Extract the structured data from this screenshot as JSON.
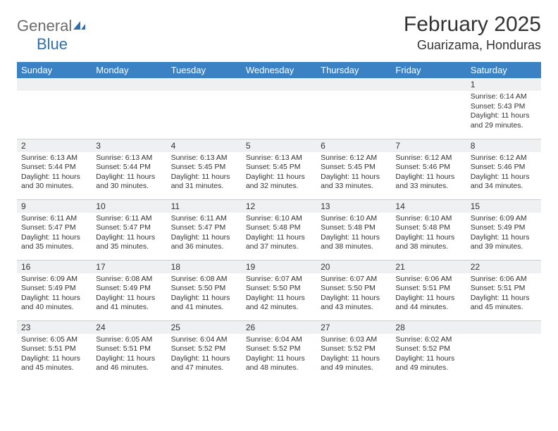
{
  "logo": {
    "word1": "General",
    "word2": "Blue"
  },
  "title": "February 2025",
  "location": "Guarizama, Honduras",
  "colors": {
    "headerBg": "#3b82c4",
    "headerText": "#ffffff",
    "dayNumBg": "#eef0f1",
    "border": "#cfcfcf",
    "logoGray": "#6b6b6b",
    "logoBlue": "#2f6fb0"
  },
  "dayHeaders": [
    "Sunday",
    "Monday",
    "Tuesday",
    "Wednesday",
    "Thursday",
    "Friday",
    "Saturday"
  ],
  "weeks": [
    [
      null,
      null,
      null,
      null,
      null,
      null,
      {
        "n": "1",
        "sr": "Sunrise: 6:14 AM",
        "ss": "Sunset: 5:43 PM",
        "dl": "Daylight: 11 hours and 29 minutes."
      }
    ],
    [
      {
        "n": "2",
        "sr": "Sunrise: 6:13 AM",
        "ss": "Sunset: 5:44 PM",
        "dl": "Daylight: 11 hours and 30 minutes."
      },
      {
        "n": "3",
        "sr": "Sunrise: 6:13 AM",
        "ss": "Sunset: 5:44 PM",
        "dl": "Daylight: 11 hours and 30 minutes."
      },
      {
        "n": "4",
        "sr": "Sunrise: 6:13 AM",
        "ss": "Sunset: 5:45 PM",
        "dl": "Daylight: 11 hours and 31 minutes."
      },
      {
        "n": "5",
        "sr": "Sunrise: 6:13 AM",
        "ss": "Sunset: 5:45 PM",
        "dl": "Daylight: 11 hours and 32 minutes."
      },
      {
        "n": "6",
        "sr": "Sunrise: 6:12 AM",
        "ss": "Sunset: 5:45 PM",
        "dl": "Daylight: 11 hours and 33 minutes."
      },
      {
        "n": "7",
        "sr": "Sunrise: 6:12 AM",
        "ss": "Sunset: 5:46 PM",
        "dl": "Daylight: 11 hours and 33 minutes."
      },
      {
        "n": "8",
        "sr": "Sunrise: 6:12 AM",
        "ss": "Sunset: 5:46 PM",
        "dl": "Daylight: 11 hours and 34 minutes."
      }
    ],
    [
      {
        "n": "9",
        "sr": "Sunrise: 6:11 AM",
        "ss": "Sunset: 5:47 PM",
        "dl": "Daylight: 11 hours and 35 minutes."
      },
      {
        "n": "10",
        "sr": "Sunrise: 6:11 AM",
        "ss": "Sunset: 5:47 PM",
        "dl": "Daylight: 11 hours and 35 minutes."
      },
      {
        "n": "11",
        "sr": "Sunrise: 6:11 AM",
        "ss": "Sunset: 5:47 PM",
        "dl": "Daylight: 11 hours and 36 minutes."
      },
      {
        "n": "12",
        "sr": "Sunrise: 6:10 AM",
        "ss": "Sunset: 5:48 PM",
        "dl": "Daylight: 11 hours and 37 minutes."
      },
      {
        "n": "13",
        "sr": "Sunrise: 6:10 AM",
        "ss": "Sunset: 5:48 PM",
        "dl": "Daylight: 11 hours and 38 minutes."
      },
      {
        "n": "14",
        "sr": "Sunrise: 6:10 AM",
        "ss": "Sunset: 5:48 PM",
        "dl": "Daylight: 11 hours and 38 minutes."
      },
      {
        "n": "15",
        "sr": "Sunrise: 6:09 AM",
        "ss": "Sunset: 5:49 PM",
        "dl": "Daylight: 11 hours and 39 minutes."
      }
    ],
    [
      {
        "n": "16",
        "sr": "Sunrise: 6:09 AM",
        "ss": "Sunset: 5:49 PM",
        "dl": "Daylight: 11 hours and 40 minutes."
      },
      {
        "n": "17",
        "sr": "Sunrise: 6:08 AM",
        "ss": "Sunset: 5:49 PM",
        "dl": "Daylight: 11 hours and 41 minutes."
      },
      {
        "n": "18",
        "sr": "Sunrise: 6:08 AM",
        "ss": "Sunset: 5:50 PM",
        "dl": "Daylight: 11 hours and 41 minutes."
      },
      {
        "n": "19",
        "sr": "Sunrise: 6:07 AM",
        "ss": "Sunset: 5:50 PM",
        "dl": "Daylight: 11 hours and 42 minutes."
      },
      {
        "n": "20",
        "sr": "Sunrise: 6:07 AM",
        "ss": "Sunset: 5:50 PM",
        "dl": "Daylight: 11 hours and 43 minutes."
      },
      {
        "n": "21",
        "sr": "Sunrise: 6:06 AM",
        "ss": "Sunset: 5:51 PM",
        "dl": "Daylight: 11 hours and 44 minutes."
      },
      {
        "n": "22",
        "sr": "Sunrise: 6:06 AM",
        "ss": "Sunset: 5:51 PM",
        "dl": "Daylight: 11 hours and 45 minutes."
      }
    ],
    [
      {
        "n": "23",
        "sr": "Sunrise: 6:05 AM",
        "ss": "Sunset: 5:51 PM",
        "dl": "Daylight: 11 hours and 45 minutes."
      },
      {
        "n": "24",
        "sr": "Sunrise: 6:05 AM",
        "ss": "Sunset: 5:51 PM",
        "dl": "Daylight: 11 hours and 46 minutes."
      },
      {
        "n": "25",
        "sr": "Sunrise: 6:04 AM",
        "ss": "Sunset: 5:52 PM",
        "dl": "Daylight: 11 hours and 47 minutes."
      },
      {
        "n": "26",
        "sr": "Sunrise: 6:04 AM",
        "ss": "Sunset: 5:52 PM",
        "dl": "Daylight: 11 hours and 48 minutes."
      },
      {
        "n": "27",
        "sr": "Sunrise: 6:03 AM",
        "ss": "Sunset: 5:52 PM",
        "dl": "Daylight: 11 hours and 49 minutes."
      },
      {
        "n": "28",
        "sr": "Sunrise: 6:02 AM",
        "ss": "Sunset: 5:52 PM",
        "dl": "Daylight: 11 hours and 49 minutes."
      },
      null
    ]
  ]
}
